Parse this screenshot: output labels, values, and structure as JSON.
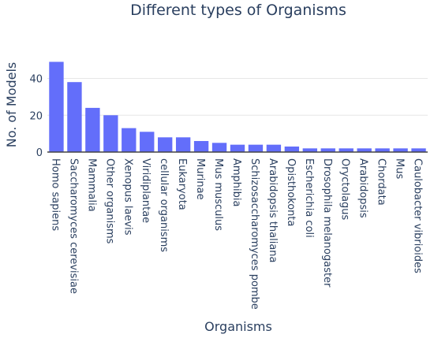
{
  "chart_data": {
    "type": "bar",
    "title": "Different types of Organisms",
    "xlabel": "Organisms",
    "ylabel": "No. of Models",
    "ylim": [
      0,
      50
    ],
    "yticks": [
      0,
      20,
      40
    ],
    "grid": true,
    "bar_color": "#636efa",
    "categories": [
      "Homo sapiens",
      "Saccharomyces cerevisiae",
      "Mammalia",
      "Other organisms",
      "Xenopus laevis",
      "Viridiplantae",
      "cellular organisms",
      "Eukaryota",
      "Murinae",
      "Mus musculus",
      "Amphibia",
      "Schizosaccharomyces pombe",
      "Arabidopsis thaliana",
      "Opisthokonta",
      "Escherichia coli",
      "Drosophila melanogaster",
      "Oryctolagus",
      "Arabidopsis",
      "Chordata",
      "Mus",
      "Caulobacter vibrioides"
    ],
    "values": [
      49,
      38,
      24,
      20,
      13,
      11,
      8,
      8,
      6,
      5,
      4,
      4,
      4,
      3,
      2,
      2,
      2,
      2,
      2,
      2,
      2
    ]
  }
}
